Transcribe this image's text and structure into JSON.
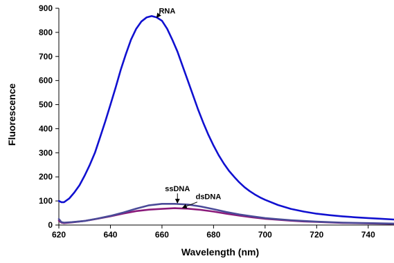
{
  "chart_data": {
    "type": "line",
    "xlabel": "Wavelength (nm)",
    "ylabel": "Fluorescence",
    "xlim": [
      620,
      750
    ],
    "ylim": [
      0,
      900
    ],
    "xticks": [
      620,
      640,
      660,
      680,
      700,
      720,
      740
    ],
    "yticks": [
      0,
      100,
      200,
      300,
      400,
      500,
      600,
      700,
      800,
      900
    ],
    "grid": false,
    "legend": "none",
    "series": [
      {
        "name": "RNA",
        "color": "#1010d0",
        "x": [
          620,
          621,
          622,
          624,
          626,
          628,
          630,
          632,
          634,
          636,
          638,
          640,
          642,
          644,
          646,
          648,
          650,
          652,
          654,
          656,
          658,
          660,
          662,
          664,
          666,
          668,
          670,
          672,
          674,
          676,
          678,
          680,
          682,
          684,
          686,
          688,
          690,
          692,
          694,
          696,
          698,
          700,
          705,
          710,
          715,
          720,
          725,
          730,
          735,
          740,
          745,
          750
        ],
        "y": [
          100,
          95,
          95,
          110,
          135,
          165,
          205,
          250,
          300,
          365,
          430,
          500,
          570,
          645,
          710,
          770,
          815,
          845,
          862,
          868,
          862,
          848,
          815,
          770,
          720,
          660,
          600,
          540,
          480,
          425,
          375,
          330,
          290,
          255,
          225,
          200,
          177,
          157,
          141,
          127,
          115,
          105,
          83,
          67,
          56,
          47,
          41,
          36,
          32,
          29,
          26,
          23
        ]
      },
      {
        "name": "ssDNA",
        "color": "#4a4a98",
        "x": [
          620,
          621,
          622,
          625,
          630,
          635,
          640,
          645,
          650,
          655,
          660,
          665,
          670,
          675,
          680,
          685,
          690,
          695,
          700,
          705,
          710,
          715,
          720,
          725,
          730,
          735,
          740,
          745,
          750
        ],
        "y": [
          25,
          12,
          10,
          12,
          17,
          27,
          38,
          52,
          68,
          82,
          88,
          88,
          85,
          77,
          66,
          54,
          44,
          36,
          29,
          24,
          20,
          17,
          14,
          12,
          10,
          9,
          8,
          7,
          6
        ]
      },
      {
        "name": "dsDNA",
        "color": "#8a1a7a",
        "x": [
          620,
          621,
          622,
          625,
          630,
          635,
          640,
          645,
          650,
          655,
          660,
          665,
          670,
          675,
          680,
          685,
          690,
          695,
          700,
          705,
          710,
          715,
          720,
          725,
          730,
          735,
          740,
          745,
          750
        ],
        "y": [
          18,
          10,
          8,
          11,
          17,
          26,
          36,
          48,
          58,
          64,
          67,
          70,
          68,
          63,
          56,
          47,
          39,
          32,
          26,
          22,
          18,
          15,
          13,
          11,
          9,
          8,
          7,
          6,
          5
        ]
      }
    ],
    "annotations": [
      {
        "text": "RNA",
        "x": 662,
        "y": 878,
        "target_x": 658,
        "target_y": 862
      },
      {
        "text": "ssDNA",
        "x": 666,
        "y": 140,
        "target_x": 666,
        "target_y": 92
      },
      {
        "text": "dsDNA",
        "x": 678,
        "y": 107,
        "target_x": 668,
        "target_y": 72
      }
    ]
  }
}
